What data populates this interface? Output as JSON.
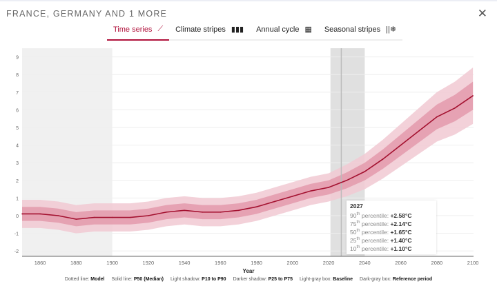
{
  "header": {
    "title": "FRANCE, GERMANY AND 1 MORE",
    "close_icon": "close-icon"
  },
  "tabs": [
    {
      "label": "Time series",
      "icon": "line-chart-icon",
      "active": true
    },
    {
      "label": "Climate stripes",
      "icon": "stripes-icon"
    },
    {
      "label": "Annual cycle",
      "icon": "calendar-icon"
    },
    {
      "label": "Seasonal stripes",
      "icon": "seasonal-stripes-icon"
    }
  ],
  "chart_data": {
    "type": "line",
    "xlabel": "Year",
    "ylabel": "",
    "xlim": [
      1850,
      2100
    ],
    "ylim": [
      -2.3,
      9.5
    ],
    "xticks": [
      1860,
      1880,
      1900,
      1920,
      1940,
      1960,
      1980,
      2000,
      2020,
      2040,
      2060,
      2080,
      2100
    ],
    "yticks": [
      -2,
      -1,
      0,
      1,
      2,
      3,
      4,
      5,
      6,
      7,
      8,
      9
    ],
    "x": [
      1850,
      1860,
      1870,
      1880,
      1890,
      1900,
      1910,
      1920,
      1930,
      1940,
      1950,
      1960,
      1970,
      1980,
      1990,
      2000,
      2010,
      2020,
      2030,
      2040,
      2050,
      2060,
      2070,
      2080,
      2090,
      2100
    ],
    "p50": [
      0.1,
      0.1,
      0.0,
      -0.2,
      -0.1,
      -0.1,
      -0.1,
      0.0,
      0.2,
      0.3,
      0.2,
      0.2,
      0.3,
      0.5,
      0.8,
      1.1,
      1.4,
      1.6,
      2.0,
      2.5,
      3.2,
      4.0,
      4.8,
      5.6,
      6.1,
      6.8
    ],
    "p10_p90_halfwidth": [
      0.8,
      0.8,
      0.8,
      0.8,
      0.8,
      0.8,
      0.8,
      0.8,
      0.8,
      0.8,
      0.8,
      0.8,
      0.8,
      0.8,
      0.8,
      0.8,
      0.8,
      0.8,
      0.9,
      1.0,
      1.1,
      1.2,
      1.3,
      1.4,
      1.5,
      1.6
    ],
    "baseline_period": [
      1850,
      1900
    ],
    "reference_period": [
      2021,
      2040
    ],
    "highlight_year": 2027,
    "colors": {
      "median": "#a3102f",
      "band_light": "#f1c9d2",
      "band_dark": "#e39aab",
      "baseline_box": "#f0f0f0",
      "reference_box": "#e0e0e0"
    },
    "grid": "horizontal"
  },
  "tooltip": {
    "year": "2027",
    "rows": [
      {
        "p": "90",
        "suffix": "th",
        "label": "percentile:",
        "value": "+2.58°C"
      },
      {
        "p": "75",
        "suffix": "th",
        "label": "percentile:",
        "value": "+2.14°C"
      },
      {
        "p": "50",
        "suffix": "th",
        "label": "percentile:",
        "value": "+1.65°C"
      },
      {
        "p": "25",
        "suffix": "th",
        "label": "percentile:",
        "value": "+1.40°C"
      },
      {
        "p": "10",
        "suffix": "th",
        "label": "percentile:",
        "value": "+1.10°C"
      }
    ]
  },
  "legend": [
    {
      "k": "Dotted line:",
      "v": "Model"
    },
    {
      "k": "Solid line:",
      "v": "P50 (Median)"
    },
    {
      "k": "Light shadow:",
      "v": "P10 to P90"
    },
    {
      "k": "Darker shadow:",
      "v": "P25 to P75"
    },
    {
      "k": "Light-gray box:",
      "v": "Baseline"
    },
    {
      "k": "Dark-gray box:",
      "v": "Reference period"
    }
  ]
}
